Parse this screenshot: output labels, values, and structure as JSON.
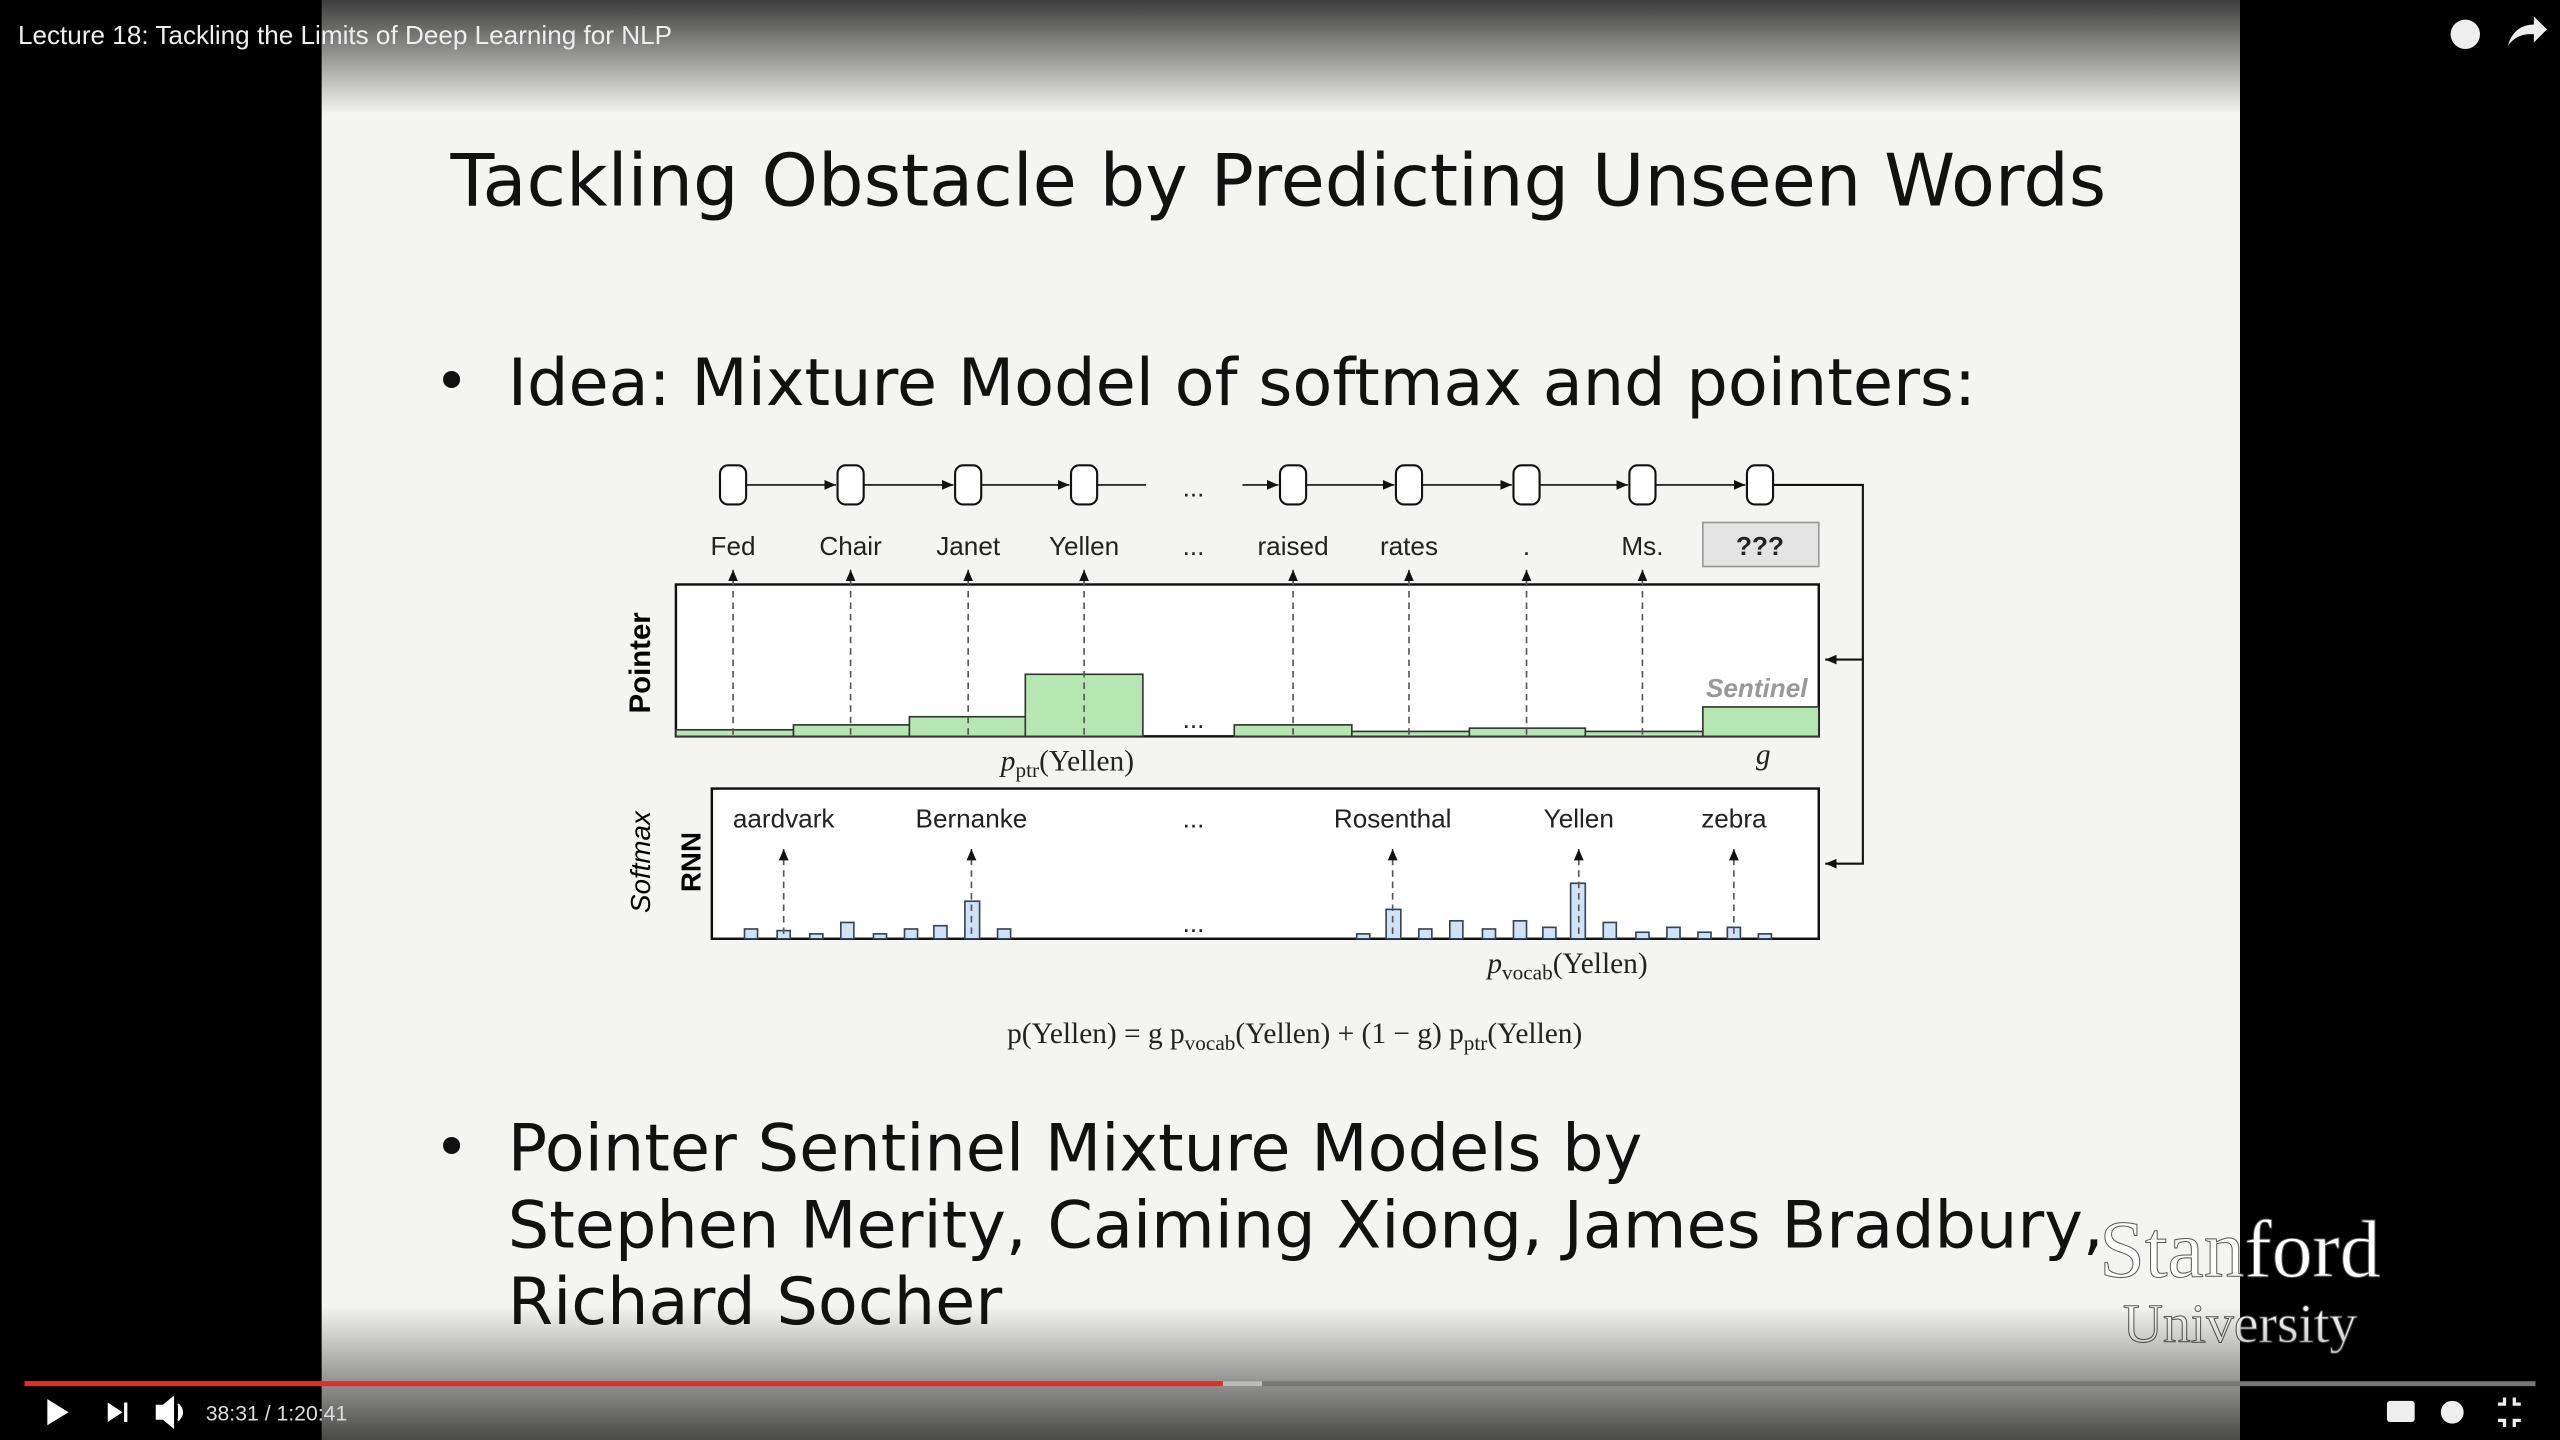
{
  "player": {
    "video_title": "Lecture 18: Tackling the Limits of Deep Learning for NLP",
    "time": "38:31 / 1:20:41"
  },
  "slide": {
    "title": "Tackling Obstacle by Predicting Unseen Words",
    "bullets": [
      "Idea: Mixture Model of softmax and pointers:",
      "Pointer Sentinel Mixture Models by",
      "Stephen Merity, Caiming Xiong, James Bradbury,",
      "Richard Socher"
    ],
    "watermark": [
      "Stanford",
      "University"
    ]
  },
  "diagram": {
    "words": [
      "Fed",
      "Chair",
      "Janet",
      "Yellen",
      "...",
      "raised",
      "rates",
      ".",
      "Ms.",
      "???"
    ],
    "pointer_label": "Pointer",
    "sentinel": "Sentinel",
    "gate": "g",
    "pointer_prob": [
      "p",
      "ptr",
      "(Yellen)"
    ],
    "softmax_label": [
      "Softmax",
      "RNN"
    ],
    "vocab_words": [
      "aardvark",
      "Bernanke",
      "...",
      "Rosenthal",
      "Yellen",
      "zebra"
    ],
    "vocab_prob": [
      "p",
      "vocab",
      "(Yellen)"
    ],
    "pointer_ellipsis": "...",
    "softmax_ellipsis": "...",
    "formula": [
      "p(Yellen) = g p",
      "vocab",
      "(Yellen) + (1 − g) p",
      "ptr",
      "(Yellen)"
    ]
  }
}
